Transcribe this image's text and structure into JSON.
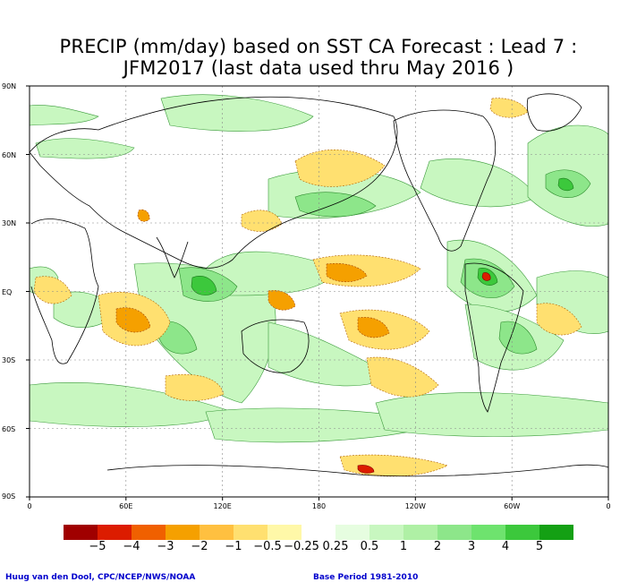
{
  "title_line1": "PRECIP (mm/day) based on SST CA Forecast : Lead 7 :",
  "title_line2": "JFM2017 (last data used thru May 2016 )",
  "lat_labels": [
    "90N",
    "60N",
    "30N",
    "EQ",
    "30S",
    "60S",
    "90S"
  ],
  "lon_labels": [
    "0",
    "60E",
    "120E",
    "180",
    "120W",
    "60W",
    "0"
  ],
  "colorbar": {
    "colors": [
      "#a00000",
      "#dc1c00",
      "#f06000",
      "#f5a000",
      "#ffc040",
      "#ffe070",
      "#fff8a8",
      "#ffffff",
      "#e6fde0",
      "#c8f7c0",
      "#aff0a5",
      "#8de68a",
      "#6ee36e",
      "#3cc83c",
      "#14a014"
    ],
    "labels": [
      "−5",
      "−4",
      "−3",
      "−2",
      "−1",
      "−0.5",
      "−0.25",
      "0.25",
      "0.5",
      "1",
      "2",
      "3",
      "4",
      "5"
    ]
  },
  "credit_left": "Huug van den Dool, CPC/NCEP/NWS/NOAA",
  "credit_right": "Base Period 1981-2010"
}
